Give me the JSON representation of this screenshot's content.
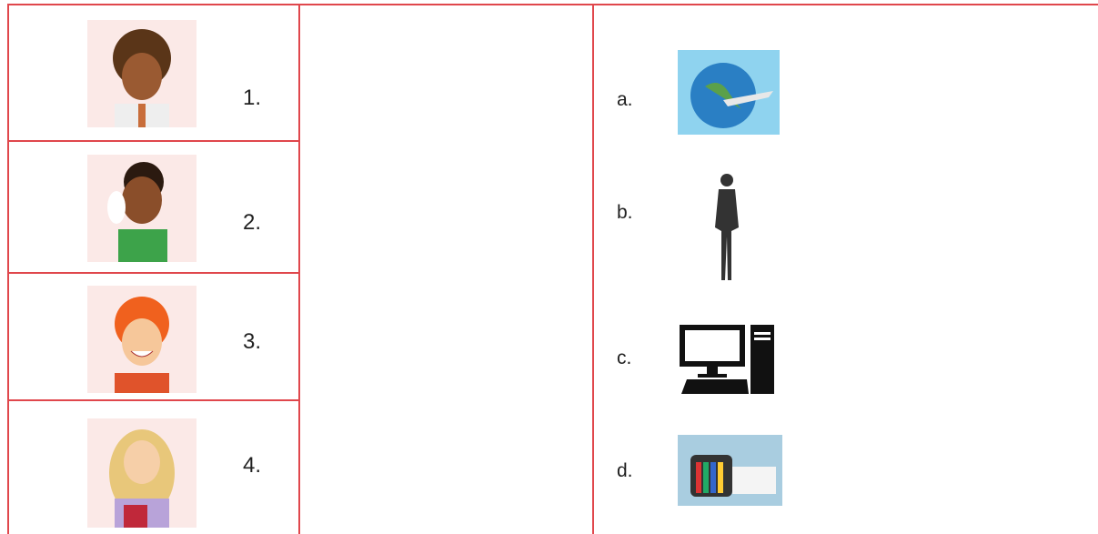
{
  "left_items": [
    {
      "label": "1."
    },
    {
      "label": "2."
    },
    {
      "label": "3."
    },
    {
      "label": "4."
    }
  ],
  "right_items": [
    {
      "label": "a."
    },
    {
      "label": "b."
    },
    {
      "label": "c."
    },
    {
      "label": "d."
    }
  ]
}
